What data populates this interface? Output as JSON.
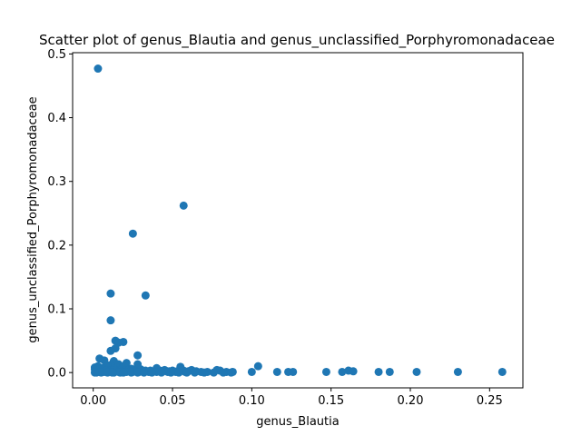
{
  "chart_data": {
    "type": "scatter",
    "title": "Scatter plot of genus_Blautia and genus_unclassified_Porphyromonadaceae",
    "xlabel": "genus_Blautia",
    "ylabel": "genus_unclassified_Porphyromonadaceae",
    "xlim": [
      -0.013,
      0.271
    ],
    "ylim": [
      -0.024,
      0.502
    ],
    "xticks": [
      0.0,
      0.05,
      0.1,
      0.15,
      0.2,
      0.25
    ],
    "xtick_labels": [
      "0.00",
      "0.05",
      "0.10",
      "0.15",
      "0.20",
      "0.25"
    ],
    "yticks": [
      0.0,
      0.1,
      0.2,
      0.3,
      0.4,
      0.5
    ],
    "ytick_labels": [
      "0.0",
      "0.1",
      "0.2",
      "0.3",
      "0.4",
      "0.5"
    ],
    "grid": false,
    "marker_color": "#1f77b4",
    "points": [
      [
        0.003,
        0.477
      ],
      [
        0.057,
        0.262
      ],
      [
        0.025,
        0.218
      ],
      [
        0.011,
        0.124
      ],
      [
        0.033,
        0.121
      ],
      [
        0.011,
        0.082
      ],
      [
        0.014,
        0.05
      ],
      [
        0.019,
        0.048
      ],
      [
        0.016,
        0.047
      ],
      [
        0.014,
        0.038
      ],
      [
        0.011,
        0.034
      ],
      [
        0.028,
        0.027
      ],
      [
        0.004,
        0.022
      ],
      [
        0.007,
        0.019
      ],
      [
        0.013,
        0.018
      ],
      [
        0.021,
        0.015
      ],
      [
        0.016,
        0.013
      ],
      [
        0.028,
        0.013
      ],
      [
        0.011,
        0.012
      ],
      [
        0.009,
        0.011
      ],
      [
        0.003,
        0.01
      ],
      [
        0.019,
        0.01
      ],
      [
        0.104,
        0.01
      ],
      [
        0.055,
        0.009
      ],
      [
        0.001,
        0.008
      ],
      [
        0.04,
        0.007
      ],
      [
        0.006,
        0.007
      ],
      [
        0.024,
        0.006
      ],
      [
        0.013,
        0.006
      ],
      [
        0.001,
        0.005
      ],
      [
        0.004,
        0.005
      ],
      [
        0.03,
        0.005
      ],
      [
        0.045,
        0.004
      ],
      [
        0.062,
        0.004
      ],
      [
        0.078,
        0.004
      ],
      [
        0.009,
        0.004
      ],
      [
        0.017,
        0.004
      ],
      [
        0.036,
        0.003
      ],
      [
        0.002,
        0.003
      ],
      [
        0.005,
        0.003
      ],
      [
        0.008,
        0.003
      ],
      [
        0.012,
        0.003
      ],
      [
        0.014,
        0.003
      ],
      [
        0.02,
        0.003
      ],
      [
        0.022,
        0.003
      ],
      [
        0.026,
        0.003
      ],
      [
        0.033,
        0.003
      ],
      [
        0.042,
        0.003
      ],
      [
        0.05,
        0.003
      ],
      [
        0.057,
        0.003
      ],
      [
        0.161,
        0.003
      ],
      [
        0.08,
        0.003
      ],
      [
        0.003,
        0.002
      ],
      [
        0.006,
        0.002
      ],
      [
        0.01,
        0.002
      ],
      [
        0.015,
        0.002
      ],
      [
        0.018,
        0.002
      ],
      [
        0.023,
        0.002
      ],
      [
        0.027,
        0.002
      ],
      [
        0.031,
        0.002
      ],
      [
        0.038,
        0.002
      ],
      [
        0.044,
        0.002
      ],
      [
        0.048,
        0.002
      ],
      [
        0.053,
        0.002
      ],
      [
        0.06,
        0.002
      ],
      [
        0.065,
        0.002
      ],
      [
        0.164,
        0.002
      ],
      [
        0.004,
        0.001
      ],
      [
        0.007,
        0.001
      ],
      [
        0.011,
        0.001
      ],
      [
        0.016,
        0.001
      ],
      [
        0.021,
        0.001
      ],
      [
        0.025,
        0.001
      ],
      [
        0.029,
        0.001
      ],
      [
        0.035,
        0.001
      ],
      [
        0.04,
        0.001
      ],
      [
        0.047,
        0.001
      ],
      [
        0.052,
        0.001
      ],
      [
        0.058,
        0.001
      ],
      [
        0.068,
        0.001
      ],
      [
        0.072,
        0.001
      ],
      [
        0.084,
        0.001
      ],
      [
        0.088,
        0.001
      ],
      [
        0.1,
        0.001
      ],
      [
        0.116,
        0.001
      ],
      [
        0.123,
        0.001
      ],
      [
        0.126,
        0.001
      ],
      [
        0.147,
        0.001
      ],
      [
        0.157,
        0.001
      ],
      [
        0.18,
        0.001
      ],
      [
        0.187,
        0.001
      ],
      [
        0.204,
        0.001
      ],
      [
        0.23,
        0.001
      ],
      [
        0.258,
        0.001
      ],
      [
        0.002,
        0.0
      ],
      [
        0.005,
        0.0
      ],
      [
        0.009,
        0.0
      ],
      [
        0.013,
        0.0
      ],
      [
        0.017,
        0.0
      ],
      [
        0.019,
        0.0
      ],
      [
        0.024,
        0.0
      ],
      [
        0.028,
        0.0
      ],
      [
        0.032,
        0.0
      ],
      [
        0.037,
        0.0
      ],
      [
        0.043,
        0.0
      ],
      [
        0.049,
        0.0
      ],
      [
        0.054,
        0.0
      ],
      [
        0.059,
        0.0
      ],
      [
        0.064,
        0.0
      ],
      [
        0.07,
        0.0
      ],
      [
        0.076,
        0.0
      ],
      [
        0.082,
        0.0
      ],
      [
        0.087,
        0.0
      ],
      [
        0.001,
        0.0
      ],
      [
        0.012,
        0.0
      ]
    ]
  }
}
